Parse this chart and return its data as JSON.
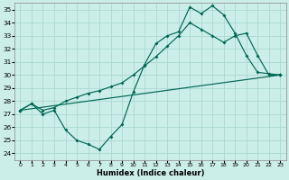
{
  "xlabel": "Humidex (Indice chaleur)",
  "bg_color": "#cceee8",
  "grid_color": "#aad8d2",
  "line_color": "#006655",
  "xlim": [
    -0.5,
    23.5
  ],
  "ylim": [
    23.5,
    35.5
  ],
  "yticks": [
    24,
    25,
    26,
    27,
    28,
    29,
    30,
    31,
    32,
    33,
    34,
    35
  ],
  "xticks": [
    0,
    1,
    2,
    3,
    4,
    5,
    6,
    7,
    8,
    9,
    10,
    11,
    12,
    13,
    14,
    15,
    16,
    17,
    18,
    19,
    20,
    21,
    22,
    23
  ],
  "curve1_x": [
    0,
    1,
    2,
    3,
    4,
    5,
    6,
    7,
    8,
    9,
    10,
    11,
    12,
    13,
    14,
    15,
    16,
    17,
    18,
    19,
    20,
    21,
    22,
    23
  ],
  "curve1_y": [
    27.3,
    27.8,
    27.0,
    27.3,
    25.8,
    25.0,
    24.7,
    24.3,
    25.3,
    26.2,
    28.7,
    30.8,
    32.4,
    33.0,
    33.3,
    35.2,
    34.7,
    35.3,
    34.6,
    33.2,
    31.5,
    30.2,
    30.1,
    30.0
  ],
  "curve2_x": [
    0,
    1,
    2,
    3,
    4,
    5,
    6,
    7,
    8,
    9,
    10,
    11,
    12,
    13,
    14,
    15,
    16,
    17,
    18,
    19,
    20,
    21,
    22,
    23
  ],
  "curve2_y": [
    27.3,
    27.8,
    27.3,
    27.5,
    28.0,
    28.3,
    28.6,
    28.8,
    29.1,
    29.4,
    30.0,
    30.7,
    31.4,
    32.2,
    33.0,
    34.0,
    33.5,
    33.0,
    32.5,
    33.0,
    33.2,
    31.5,
    30.0,
    30.0
  ],
  "curve3_x": [
    0,
    23
  ],
  "curve3_y": [
    27.3,
    30.0
  ]
}
